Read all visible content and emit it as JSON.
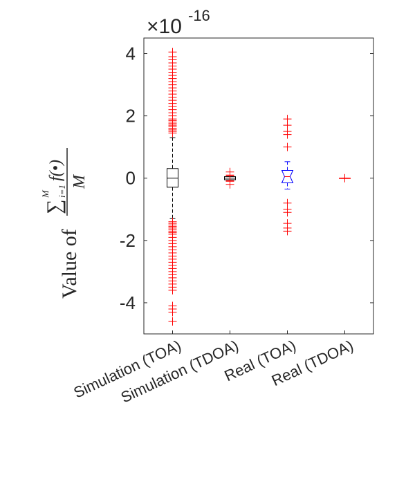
{
  "chart_data": {
    "type": "box",
    "exponent_base": "×10",
    "exponent": "-16",
    "y_label": "Value of",
    "y_label_formula": {
      "sum_symbol": "∑",
      "sum_upper": "M",
      "sum_lower": "i=1",
      "numerator": "f(•)",
      "denominator": "M"
    },
    "categories": [
      "Simulation (TOA)",
      "Simulation (TDOA)",
      "Real (TOA)",
      "Real (TDOA)"
    ],
    "ylim": [
      -5,
      4.5
    ],
    "yticks": [
      -4,
      -2,
      0,
      2,
      4
    ],
    "outlier_color": "#ff0000",
    "boxes": [
      {
        "color": "#000000",
        "notch": false,
        "q1": -0.29,
        "median": 0,
        "q3": 0.31,
        "whisker_low": -1.3,
        "whisker_high": 1.3,
        "outliers": [
          1.45,
          1.5,
          1.55,
          1.6,
          1.65,
          1.7,
          1.75,
          1.8,
          1.85,
          1.9,
          2.0,
          2.1,
          2.2,
          2.3,
          2.4,
          2.5,
          2.6,
          2.7,
          2.8,
          2.9,
          3.0,
          3.1,
          3.2,
          3.3,
          3.4,
          3.5,
          3.6,
          3.7,
          3.8,
          3.9,
          4.05,
          -1.4,
          -1.45,
          -1.5,
          -1.55,
          -1.6,
          -1.65,
          -1.7,
          -1.75,
          -1.8,
          -1.9,
          -2.0,
          -2.1,
          -2.2,
          -2.3,
          -2.4,
          -2.5,
          -2.6,
          -2.7,
          -2.8,
          -2.9,
          -3.0,
          -3.1,
          -3.2,
          -3.3,
          -3.4,
          -3.5,
          -3.6,
          -4.1,
          -4.2,
          -4.3,
          -4.6
        ]
      },
      {
        "color": "#000000",
        "notch": false,
        "q1": -0.05,
        "median": 0,
        "q3": 0.05,
        "whisker_low": -0.05,
        "whisker_high": 0.05,
        "outliers": [
          0.2,
          0.1,
          0.08,
          -0.08,
          -0.1,
          -0.2
        ]
      },
      {
        "color": "#0000ff",
        "notch": true,
        "q1": -0.15,
        "median": 0.05,
        "q3": 0.25,
        "whisker_low": -0.35,
        "whisker_high": 0.53,
        "outliers": [
          1.9,
          1.7,
          1.5,
          1.4,
          1.0,
          -0.8,
          -1.0,
          -1.1,
          -1.45,
          -1.6,
          -1.7
        ]
      },
      {
        "color": "#ff0000",
        "notch": false,
        "q1": 0,
        "median": 0,
        "q3": 0,
        "whisker_low": 0,
        "whisker_high": 0,
        "outliers": [
          0
        ]
      }
    ]
  }
}
